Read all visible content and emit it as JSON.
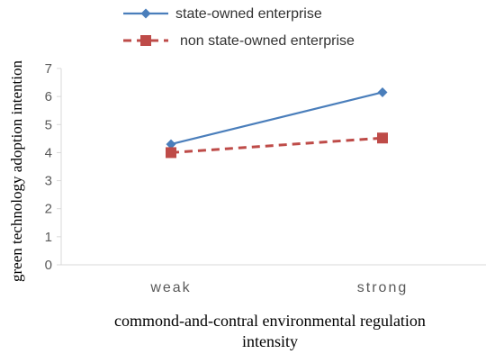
{
  "chart_data": {
    "type": "line",
    "categories": [
      "weak",
      "strong"
    ],
    "series": [
      {
        "name": "state-owned enterprise",
        "values": [
          4.3,
          6.15
        ],
        "color": "#4A7EBB",
        "marker": "diamond",
        "dash": "solid"
      },
      {
        "name": "non state-owned enterprise",
        "values": [
          4.0,
          4.52
        ],
        "color": "#BE4B48",
        "marker": "square",
        "dash": "dashed"
      }
    ],
    "ylabel": "green technology adoption intention",
    "xlabel_lines": [
      "commond-and-contral environmental regulation",
      "intensity"
    ],
    "ylim": [
      0,
      7
    ],
    "yticks": [
      "0",
      "1",
      "2",
      "3",
      "4",
      "5",
      "6",
      "7"
    ],
    "grid": false,
    "legend_position": "top"
  }
}
